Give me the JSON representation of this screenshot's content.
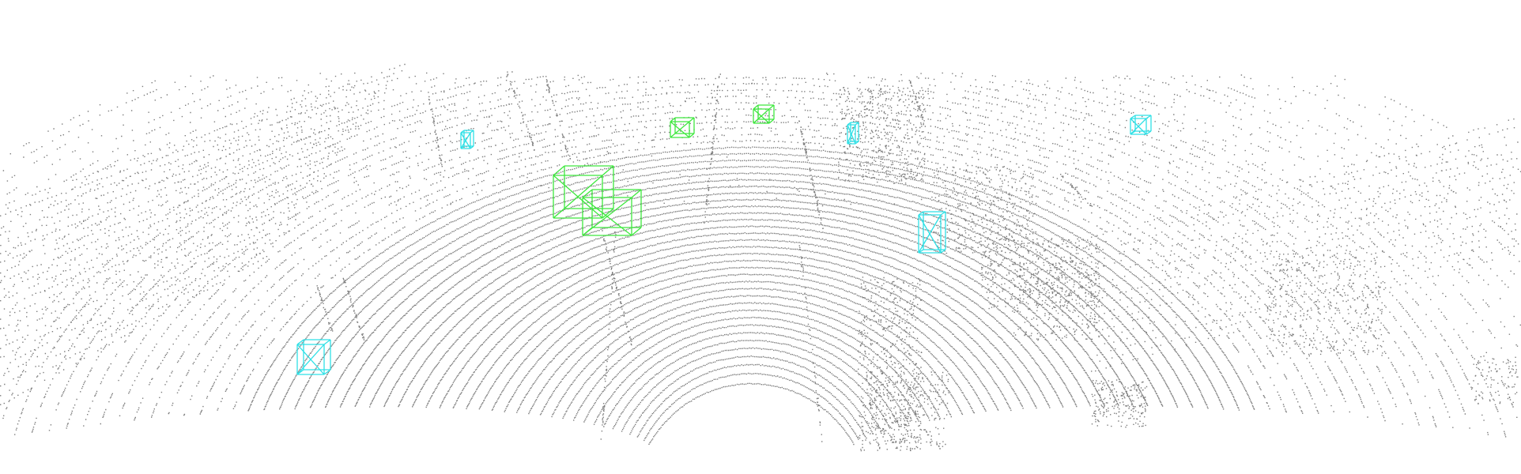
{
  "scene": {
    "background": "#ffffff",
    "point_color": "#7c7c7c",
    "object_classes": [
      {
        "class_id": "vehicle",
        "box_color": "#3fe83f"
      },
      {
        "class_id": "pedestrian",
        "box_color": "#2fe0e6"
      }
    ],
    "objects": [
      {
        "id": "car-1",
        "class": "vehicle"
      },
      {
        "id": "car-2",
        "class": "vehicle"
      },
      {
        "id": "car-3",
        "class": "vehicle"
      },
      {
        "id": "car-4",
        "class": "vehicle"
      },
      {
        "id": "ped-1",
        "class": "pedestrian"
      },
      {
        "id": "ped-2",
        "class": "pedestrian"
      },
      {
        "id": "ped-3",
        "class": "pedestrian"
      },
      {
        "id": "ped-4",
        "class": "pedestrian"
      },
      {
        "id": "ped-5",
        "class": "pedestrian"
      }
    ]
  }
}
